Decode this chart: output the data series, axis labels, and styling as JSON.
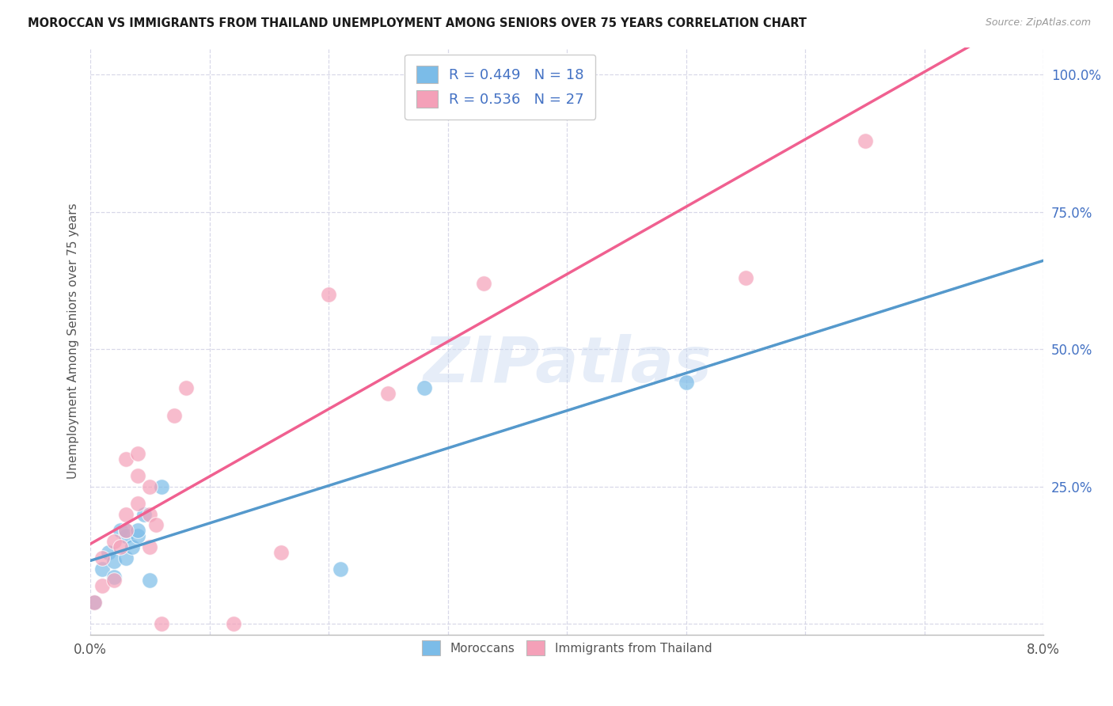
{
  "title": "MOROCCAN VS IMMIGRANTS FROM THAILAND UNEMPLOYMENT AMONG SENIORS OVER 75 YEARS CORRELATION CHART",
  "source": "Source: ZipAtlas.com",
  "ylabel": "Unemployment Among Seniors over 75 years",
  "xlim": [
    0.0,
    0.08
  ],
  "ylim": [
    -0.02,
    1.05
  ],
  "xticks": [
    0.0,
    0.01,
    0.02,
    0.03,
    0.04,
    0.05,
    0.06,
    0.07,
    0.08
  ],
  "xticklabels": [
    "0.0%",
    "",
    "",
    "",
    "",
    "",
    "",
    "",
    "8.0%"
  ],
  "yticks": [
    0.0,
    0.25,
    0.5,
    0.75,
    1.0
  ],
  "yticklabels": [
    "",
    "25.0%",
    "50.0%",
    "75.0%",
    "100.0%"
  ],
  "moroccan_color": "#7bbce8",
  "thailand_color": "#f4a0b8",
  "moroccan_line_color": "#5599cc",
  "thailand_line_color": "#f06090",
  "dashed_line_color": "#aaccee",
  "moroccan_R": 0.449,
  "moroccan_N": 18,
  "thailand_R": 0.536,
  "thailand_N": 27,
  "watermark": "ZIPatlas",
  "background_color": "#ffffff",
  "grid_color": "#d8d8e8",
  "moroccan_x": [
    0.0003,
    0.001,
    0.0015,
    0.002,
    0.002,
    0.0025,
    0.003,
    0.003,
    0.003,
    0.0035,
    0.004,
    0.004,
    0.0045,
    0.005,
    0.006,
    0.021,
    0.028,
    0.05
  ],
  "moroccan_y": [
    0.04,
    0.1,
    0.13,
    0.085,
    0.115,
    0.17,
    0.12,
    0.16,
    0.17,
    0.14,
    0.16,
    0.17,
    0.2,
    0.08,
    0.25,
    0.1,
    0.43,
    0.44
  ],
  "thailand_x": [
    0.0003,
    0.001,
    0.001,
    0.002,
    0.002,
    0.0025,
    0.003,
    0.003,
    0.003,
    0.004,
    0.004,
    0.004,
    0.005,
    0.005,
    0.005,
    0.0055,
    0.006,
    0.007,
    0.008,
    0.012,
    0.016,
    0.02,
    0.025,
    0.028,
    0.033,
    0.055,
    0.065
  ],
  "thailand_y": [
    0.04,
    0.07,
    0.12,
    0.08,
    0.15,
    0.14,
    0.17,
    0.2,
    0.3,
    0.22,
    0.27,
    0.31,
    0.14,
    0.2,
    0.25,
    0.18,
    0.0,
    0.38,
    0.43,
    0.0,
    0.13,
    0.6,
    0.42,
    1.0,
    0.62,
    0.63,
    0.88
  ],
  "regression_moroccan_slope": 6.8,
  "regression_moroccan_intercept": 0.03,
  "regression_thailand_slope": 13.5,
  "regression_thailand_intercept": 0.02
}
